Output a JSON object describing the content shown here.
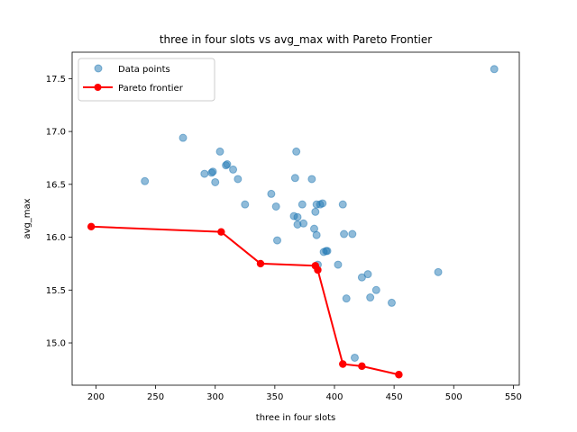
{
  "chart_data": {
    "type": "scatter",
    "title": "three in four slots vs avg_max with Pareto Frontier",
    "xlabel": "three in four slots",
    "ylabel": "avg_max",
    "xlim": [
      180,
      555
    ],
    "ylim": [
      14.6,
      17.75
    ],
    "xticks": [
      200,
      250,
      300,
      350,
      400,
      450,
      500,
      550
    ],
    "yticks": [
      15.0,
      15.5,
      16.0,
      16.5,
      17.0,
      17.5
    ],
    "xtick_labels": [
      "200",
      "250",
      "300",
      "350",
      "400",
      "450",
      "500",
      "550"
    ],
    "ytick_labels": [
      "15.0",
      "15.5",
      "16.0",
      "16.5",
      "17.0",
      "17.5"
    ],
    "grid": false,
    "legend_position": "top-left",
    "series": [
      {
        "name": "Data points",
        "kind": "scatter",
        "color": "#1f77b4",
        "points": [
          [
            241,
            16.53
          ],
          [
            273,
            16.94
          ],
          [
            291,
            16.6
          ],
          [
            297,
            16.61
          ],
          [
            298,
            16.62
          ],
          [
            300,
            16.52
          ],
          [
            304,
            16.81
          ],
          [
            309,
            16.68
          ],
          [
            310,
            16.69
          ],
          [
            315,
            16.64
          ],
          [
            319,
            16.55
          ],
          [
            325,
            16.31
          ],
          [
            347,
            16.41
          ],
          [
            351,
            16.29
          ],
          [
            352,
            15.97
          ],
          [
            366,
            16.2
          ],
          [
            367,
            16.56
          ],
          [
            368,
            16.81
          ],
          [
            369,
            16.19
          ],
          [
            369,
            16.12
          ],
          [
            373,
            16.31
          ],
          [
            374,
            16.13
          ],
          [
            381,
            16.55
          ],
          [
            383,
            16.08
          ],
          [
            384,
            16.24
          ],
          [
            385,
            16.31
          ],
          [
            385,
            16.02
          ],
          [
            386,
            15.74
          ],
          [
            388,
            16.31
          ],
          [
            390,
            16.32
          ],
          [
            391,
            15.86
          ],
          [
            393,
            15.87
          ],
          [
            394,
            15.87
          ],
          [
            403,
            15.74
          ],
          [
            407,
            16.31
          ],
          [
            408,
            16.03
          ],
          [
            410,
            15.42
          ],
          [
            415,
            16.03
          ],
          [
            417,
            14.86
          ],
          [
            423,
            15.62
          ],
          [
            428,
            15.65
          ],
          [
            430,
            15.43
          ],
          [
            435,
            15.5
          ],
          [
            448,
            15.38
          ],
          [
            487,
            15.67
          ],
          [
            534,
            17.59
          ]
        ]
      },
      {
        "name": "Pareto frontier",
        "kind": "line",
        "color": "#ff0000",
        "points": [
          [
            196,
            16.1
          ],
          [
            305,
            16.05
          ],
          [
            338,
            15.75
          ],
          [
            384,
            15.73
          ],
          [
            386,
            15.69
          ],
          [
            407,
            14.8
          ],
          [
            423,
            14.78
          ],
          [
            454,
            14.7
          ]
        ]
      }
    ]
  }
}
